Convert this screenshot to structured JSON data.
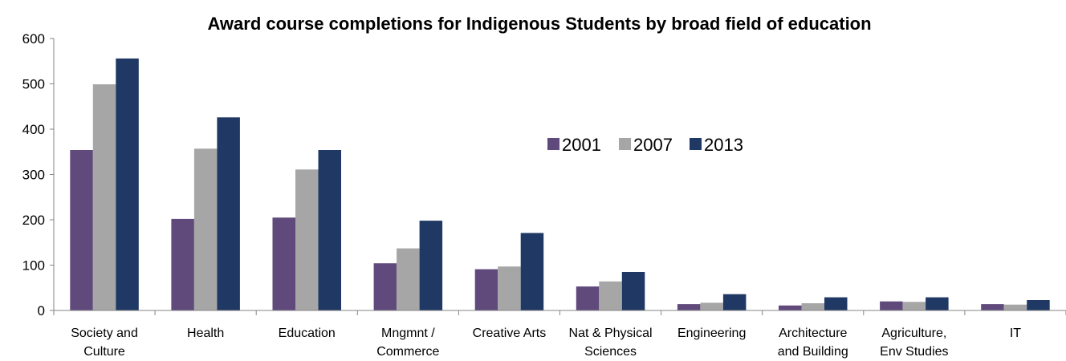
{
  "chart_data": {
    "type": "bar",
    "title": "Award course completions for Indigenous Students by broad field of education",
    "xlabel": "",
    "ylabel": "",
    "ylim": [
      0,
      600
    ],
    "yticks": [
      "0",
      "100",
      "200",
      "300",
      "400",
      "500",
      "600"
    ],
    "grid": false,
    "legend_position": "center-right",
    "categories": [
      [
        "Society and",
        "Culture"
      ],
      [
        "Health"
      ],
      [
        "Education"
      ],
      [
        "Mngmnt /",
        "Commerce"
      ],
      [
        "Creative Arts"
      ],
      [
        "Nat & Physical",
        "Sciences"
      ],
      [
        "Engineering"
      ],
      [
        "Architecture",
        "and Building"
      ],
      [
        "Agriculture,",
        "Env Studies"
      ],
      [
        "IT"
      ]
    ],
    "series": [
      {
        "name": "2001",
        "color": "#604a7b",
        "values": [
          354,
          202,
          205,
          104,
          91,
          53,
          14,
          11,
          20,
          14
        ]
      },
      {
        "name": "2007",
        "color": "#a6a6a6",
        "values": [
          499,
          357,
          311,
          137,
          97,
          64,
          17,
          16,
          19,
          13
        ]
      },
      {
        "name": "2013",
        "color": "#1f3864",
        "values": [
          556,
          426,
          354,
          198,
          171,
          85,
          36,
          29,
          29,
          23
        ]
      }
    ]
  }
}
